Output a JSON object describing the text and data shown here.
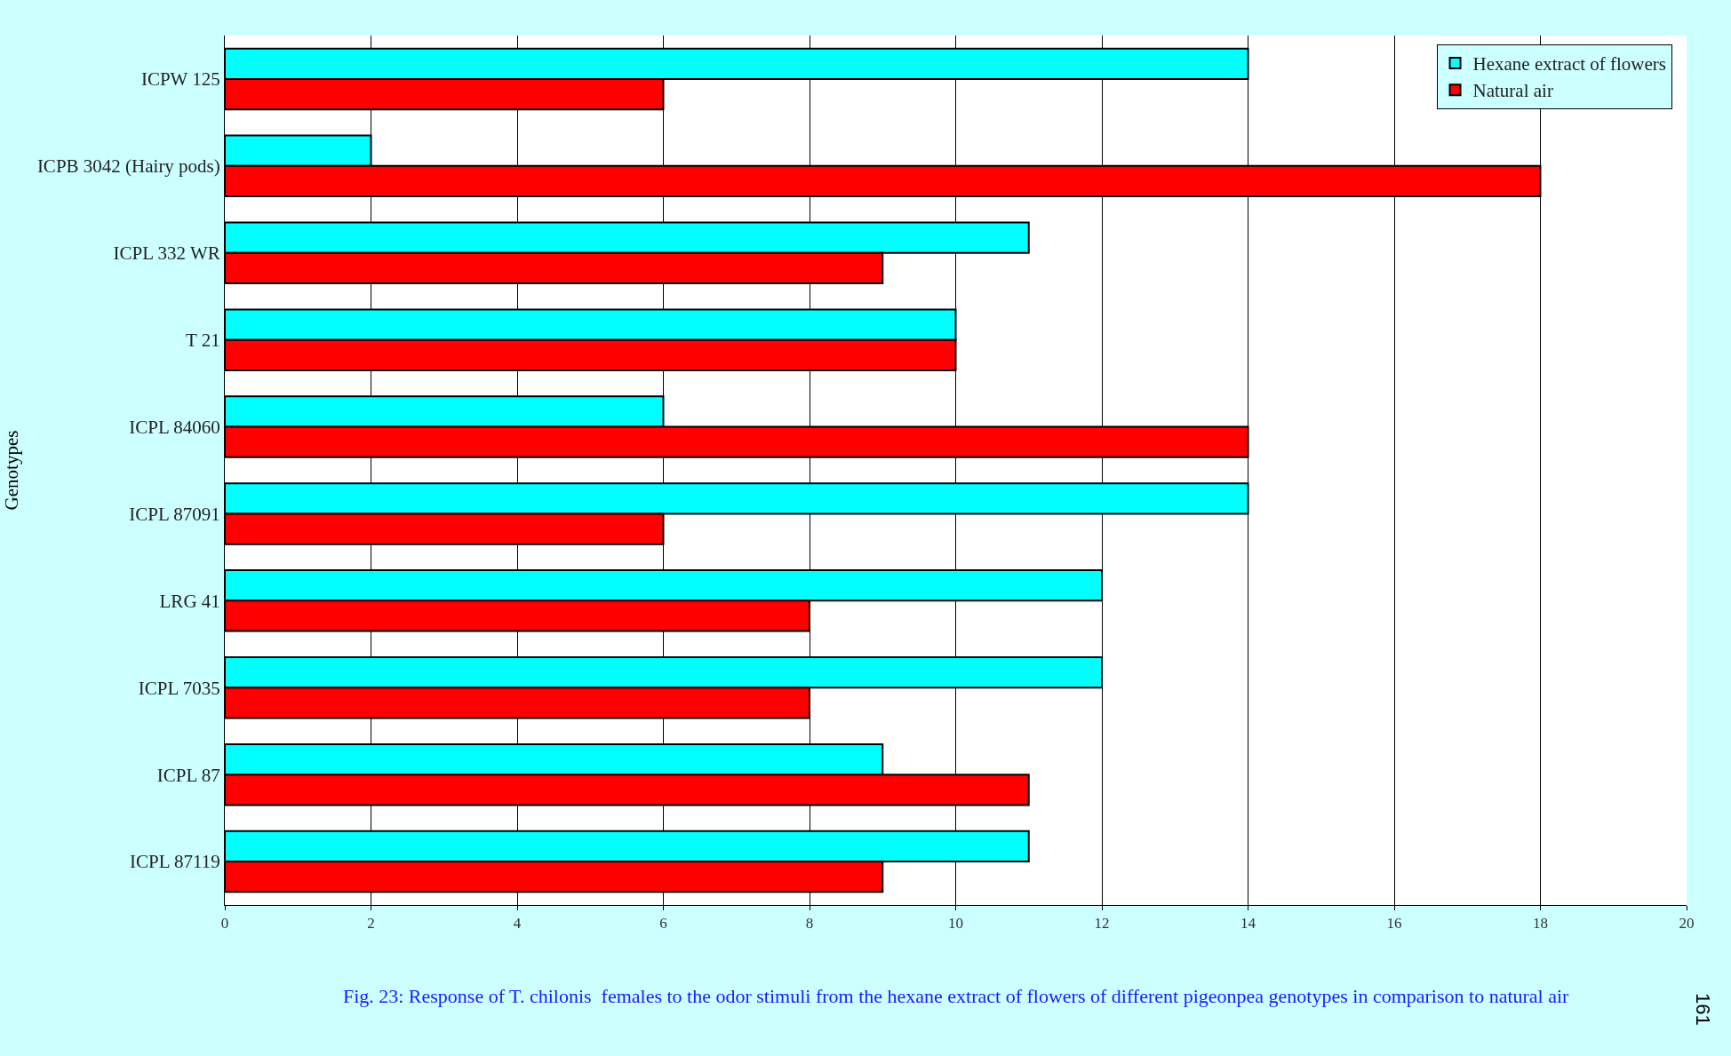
{
  "chart_data": {
    "type": "bar",
    "orientation": "horizontal",
    "ylabel": "Genotypes",
    "categories": [
      "ICPW 125",
      "ICPB 3042 (Hairy pods)",
      "ICPL 332 WR",
      "T 21",
      "ICPL 84060",
      "ICPL 87091",
      "LRG 41",
      "ICPL 7035",
      "ICPL 87",
      "ICPL 87119"
    ],
    "series": [
      {
        "name": "Hexane extract of flowers",
        "color": "#00ffff",
        "values": [
          14,
          2,
          11,
          10,
          6,
          14,
          12,
          12,
          9,
          11
        ]
      },
      {
        "name": "Natural air",
        "color": "#ff0000",
        "values": [
          6,
          18,
          9,
          10,
          14,
          6,
          8,
          8,
          11,
          9
        ]
      }
    ],
    "xlim": [
      0,
      20
    ],
    "xticks": [
      0,
      2,
      4,
      6,
      8,
      10,
      12,
      14,
      16,
      18,
      20
    ],
    "grid": "x",
    "legend": "top right",
    "annotations": [
      "Fig. 23: Response of T. chilonis  females to the odor stimuli from the hexane extract of flowers of different pigeonpea genotypes in comparison to natural air",
      "161"
    ]
  }
}
